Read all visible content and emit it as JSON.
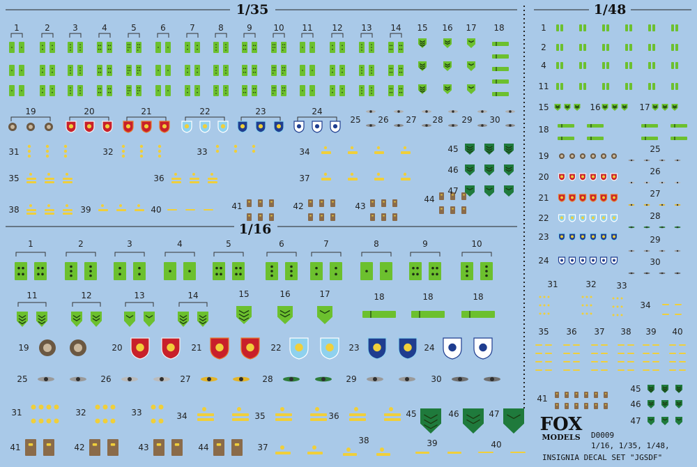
{
  "headings": {
    "s35": "1/35",
    "s16": "1/16",
    "s48": "1/48"
  },
  "brand": {
    "line1": "FOX",
    "line2": "MODELS"
  },
  "info": {
    "code": "D0009",
    "scales": "1/16, 1/35, 1/48,",
    "title": "INSIGNIA DECAL SET \"JGSDF\""
  },
  "colors": {
    "background": "#a9c9e8",
    "green": "#6cc02e",
    "dark_green": "#1f7a3c",
    "gold": "#f0cf3a",
    "red": "#c8202a",
    "orange": "#e8792a",
    "sky": "#8fd1ee",
    "navy": "#1f3d8f",
    "brown": "#8a6b4a"
  },
  "labels": {
    "s35_row1": [
      "1",
      "2",
      "3",
      "4",
      "5",
      "6",
      "7",
      "8",
      "9",
      "10",
      "11",
      "12",
      "13",
      "14",
      "15",
      "16",
      "17",
      "18"
    ],
    "s35_row2": [
      "19",
      "20",
      "21",
      "22",
      "23",
      "24",
      "25",
      "26",
      "27",
      "28",
      "29",
      "30"
    ],
    "s35_left": [
      "31",
      "32",
      "33",
      "35",
      "36",
      "38",
      "39",
      "40"
    ],
    "s35_mid": [
      "34",
      "37",
      "41",
      "42",
      "43",
      "44"
    ],
    "s35_right": [
      "45",
      "46",
      "47"
    ],
    "s16_row1": [
      "1",
      "2",
      "3",
      "4",
      "5",
      "6",
      "7",
      "8",
      "9",
      "10"
    ],
    "s16_row2": [
      "11",
      "12",
      "13",
      "14",
      "15",
      "16",
      "17",
      "18",
      "18",
      "18"
    ],
    "s16_row3": [
      "19",
      "20",
      "21",
      "22",
      "23",
      "24"
    ],
    "s16_row4": [
      "25",
      "26",
      "27",
      "28",
      "29",
      "30"
    ],
    "s16_row5": [
      "31",
      "32",
      "33",
      "34",
      "35",
      "36",
      "45",
      "46",
      "47"
    ],
    "s16_row6": [
      "41",
      "42",
      "43",
      "44",
      "37",
      "38",
      "39",
      "40"
    ],
    "s48_col": [
      "1",
      "2",
      "4",
      "11",
      "15",
      "16",
      "17",
      "18",
      "19",
      "20",
      "21",
      "22",
      "23",
      "24"
    ],
    "s48_right": [
      "25",
      "26",
      "27",
      "28",
      "29",
      "30"
    ],
    "s48_bottom": [
      "31",
      "32",
      "33",
      "34",
      "35",
      "36",
      "37",
      "38",
      "39",
      "40",
      "41",
      "45",
      "46",
      "47"
    ]
  }
}
